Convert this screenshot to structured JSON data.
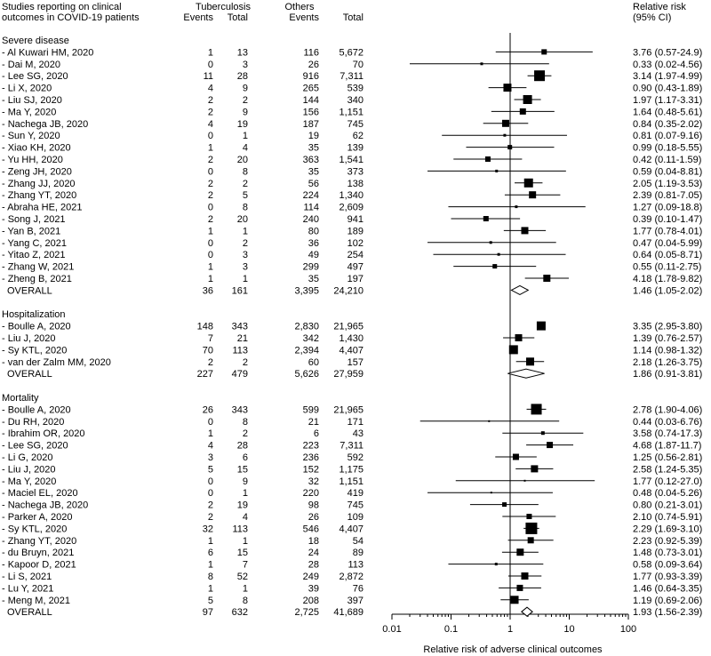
{
  "chart_data": {
    "type": "forest",
    "header": {
      "study_line1": "Studies reporting on clinical",
      "study_line2": "outcomes in COVID-19 patients",
      "group1": "Tuberculosis",
      "group2": "Others",
      "events": "Events",
      "total": "Total",
      "rr_line1": "Relative risk",
      "rr_line2": "(95% CI)"
    },
    "xaxis": {
      "scale": "log",
      "range": [
        0.01,
        100
      ],
      "ticks": [
        0.01,
        0.1,
        1,
        10,
        100
      ],
      "tick_labels": [
        "0.01",
        "0.1",
        "1",
        "10",
        "100"
      ],
      "label": "Relative risk of adverse clinical outcomes",
      "reference": 1
    },
    "rows": [
      {
        "kind": "header",
        "label": "Severe disease"
      },
      {
        "kind": "study",
        "label": "- Al Kuwari HM, 2020",
        "tb_events": "1",
        "tb_total": "13",
        "oth_events": "116",
        "oth_total": "5,672",
        "rr": 3.76,
        "lo": 0.57,
        "hi": 24.9,
        "ci_text": "3.76 (0.57-24.9)",
        "w": 6
      },
      {
        "kind": "study",
        "label": "- Dai M, 2020",
        "tb_events": "0",
        "tb_total": "3",
        "oth_events": "26",
        "oth_total": "70",
        "rr": 0.33,
        "lo": 0.02,
        "hi": 4.56,
        "ci_text": "0.33 (0.02-4.56)",
        "w": 3
      },
      {
        "kind": "study",
        "label": "- Lee SG, 2020",
        "tb_events": "11",
        "tb_total": "28",
        "oth_events": "916",
        "oth_total": "7,311",
        "rr": 3.14,
        "lo": 1.97,
        "hi": 4.99,
        "ci_text": "3.14 (1.97-4.99)",
        "w": 12
      },
      {
        "kind": "study",
        "label": "- Li X, 2020",
        "tb_events": "4",
        "tb_total": "9",
        "oth_events": "265",
        "oth_total": "539",
        "rr": 0.9,
        "lo": 0.43,
        "hi": 1.89,
        "ci_text": "0.90 (0.43-1.89)",
        "w": 9
      },
      {
        "kind": "study",
        "label": "- Liu SJ, 2020",
        "tb_events": "2",
        "tb_total": "2",
        "oth_events": "144",
        "oth_total": "340",
        "rr": 1.97,
        "lo": 1.17,
        "hi": 3.31,
        "ci_text": "1.97 (1.17-3.31)",
        "w": 10
      },
      {
        "kind": "study",
        "label": "- Ma Y, 2020",
        "tb_events": "2",
        "tb_total": "9",
        "oth_events": "156",
        "oth_total": "1,151",
        "rr": 1.64,
        "lo": 0.48,
        "hi": 5.61,
        "ci_text": "1.64 (0.48-5.61)",
        "w": 7
      },
      {
        "kind": "study",
        "label": "- Nachega JB, 2020",
        "tb_events": "4",
        "tb_total": "19",
        "oth_events": "187",
        "oth_total": "745",
        "rr": 0.84,
        "lo": 0.35,
        "hi": 2.02,
        "ci_text": "0.84 (0.35-2.02)",
        "w": 8
      },
      {
        "kind": "study",
        "label": "- Sun Y, 2020",
        "tb_events": "0",
        "tb_total": "1",
        "oth_events": "19",
        "oth_total": "62",
        "rr": 0.81,
        "lo": 0.07,
        "hi": 9.16,
        "ci_text": "0.81 (0.07-9.16)",
        "w": 3
      },
      {
        "kind": "study",
        "label": "- Xiao KH, 2020",
        "tb_events": "1",
        "tb_total": "4",
        "oth_events": "35",
        "oth_total": "139",
        "rr": 0.99,
        "lo": 0.18,
        "hi": 5.55,
        "ci_text": "0.99 (0.18-5.55)",
        "w": 5
      },
      {
        "kind": "study",
        "label": "- Yu HH, 2020",
        "tb_events": "2",
        "tb_total": "20",
        "oth_events": "363",
        "oth_total": "1,541",
        "rr": 0.42,
        "lo": 0.11,
        "hi": 1.59,
        "ci_text": "0.42 (0.11-1.59)",
        "w": 6
      },
      {
        "kind": "study",
        "label": "- Zeng JH, 2020",
        "tb_events": "0",
        "tb_total": "8",
        "oth_events": "35",
        "oth_total": "373",
        "rr": 0.59,
        "lo": 0.04,
        "hi": 8.81,
        "ci_text": "0.59 (0.04-8.81)",
        "w": 3
      },
      {
        "kind": "study",
        "label": "- Zhang JJ, 2020",
        "tb_events": "2",
        "tb_total": "2",
        "oth_events": "56",
        "oth_total": "138",
        "rr": 2.05,
        "lo": 1.19,
        "hi": 3.53,
        "ci_text": "2.05 (1.19-3.53)",
        "w": 10
      },
      {
        "kind": "study",
        "label": "- Zhang YT, 2020",
        "tb_events": "2",
        "tb_total": "5",
        "oth_events": "224",
        "oth_total": "1,340",
        "rr": 2.39,
        "lo": 0.81,
        "hi": 7.05,
        "ci_text": "2.39 (0.81-7.05)",
        "w": 8
      },
      {
        "kind": "study",
        "label": "- Abraha HE, 2021",
        "tb_events": "0",
        "tb_total": "8",
        "oth_events": "114",
        "oth_total": "2,609",
        "rr": 1.27,
        "lo": 0.09,
        "hi": 18.8,
        "ci_text": "1.27 (0.09-18.8)",
        "w": 3
      },
      {
        "kind": "study",
        "label": "- Song J, 2021",
        "tb_events": "2",
        "tb_total": "20",
        "oth_events": "240",
        "oth_total": "941",
        "rr": 0.39,
        "lo": 0.1,
        "hi": 1.47,
        "ci_text": "0.39 (0.10-1.47)",
        "w": 6
      },
      {
        "kind": "study",
        "label": "- Yan B, 2021",
        "tb_events": "1",
        "tb_total": "1",
        "oth_events": "80",
        "oth_total": "189",
        "rr": 1.77,
        "lo": 0.78,
        "hi": 4.01,
        "ci_text": "1.77 (0.78-4.01)",
        "w": 8
      },
      {
        "kind": "study",
        "label": "- Yang C, 2021",
        "tb_events": "0",
        "tb_total": "2",
        "oth_events": "36",
        "oth_total": "102",
        "rr": 0.47,
        "lo": 0.04,
        "hi": 5.99,
        "ci_text": "0.47 (0.04-5.99)",
        "w": 3
      },
      {
        "kind": "study",
        "label": "- Yitao Z, 2021",
        "tb_events": "0",
        "tb_total": "3",
        "oth_events": "49",
        "oth_total": "254",
        "rr": 0.64,
        "lo": 0.05,
        "hi": 8.71,
        "ci_text": "0.64 (0.05-8.71)",
        "w": 3
      },
      {
        "kind": "study",
        "label": "- Zhang W, 2021",
        "tb_events": "1",
        "tb_total": "3",
        "oth_events": "299",
        "oth_total": "497",
        "rr": 0.55,
        "lo": 0.11,
        "hi": 2.75,
        "ci_text": "0.55 (0.11-2.75)",
        "w": 5
      },
      {
        "kind": "study",
        "label": "- Zheng B, 2021",
        "tb_events": "1",
        "tb_total": "1",
        "oth_events": "35",
        "oth_total": "197",
        "rr": 4.18,
        "lo": 1.78,
        "hi": 9.82,
        "ci_text": "4.18 (1.78-9.82)",
        "w": 8
      },
      {
        "kind": "overall",
        "label": "OVERALL",
        "tb_events": "36",
        "tb_total": "161",
        "oth_events": "3,395",
        "oth_total": "24,210",
        "rr": 1.46,
        "lo": 1.05,
        "hi": 2.02,
        "ci_text": "1.46 (1.05-2.02)"
      },
      {
        "kind": "spacer"
      },
      {
        "kind": "header",
        "label": "Hospitalization"
      },
      {
        "kind": "study",
        "label": "- Boulle A, 2020",
        "tb_events": "148",
        "tb_total": "343",
        "oth_events": "2,830",
        "oth_total": "21,965",
        "rr": 3.35,
        "lo": 2.95,
        "hi": 3.8,
        "ci_text": "3.35 (2.95-3.80)",
        "w": 10
      },
      {
        "kind": "study",
        "label": "- Liu J, 2020",
        "tb_events": "7",
        "tb_total": "21",
        "oth_events": "342",
        "oth_total": "1,430",
        "rr": 1.39,
        "lo": 0.76,
        "hi": 2.57,
        "ci_text": "1.39 (0.76-2.57)",
        "w": 8
      },
      {
        "kind": "study",
        "label": "- Sy KTL, 2020",
        "tb_events": "70",
        "tb_total": "113",
        "oth_events": "2,394",
        "oth_total": "4,407",
        "rr": 1.14,
        "lo": 0.98,
        "hi": 1.32,
        "ci_text": "1.14 (0.98-1.32)",
        "w": 10
      },
      {
        "kind": "study",
        "label": "- van der Zalm MM, 2020",
        "tb_events": "2",
        "tb_total": "2",
        "oth_events": "60",
        "oth_total": "157",
        "rr": 2.18,
        "lo": 1.26,
        "hi": 3.75,
        "ci_text": "2.18 (1.26-3.75)",
        "w": 9
      },
      {
        "kind": "overall",
        "label": "OVERALL",
        "tb_events": "227",
        "tb_total": "479",
        "oth_events": "5,626",
        "oth_total": "27,959",
        "rr": 1.86,
        "lo": 0.91,
        "hi": 3.81,
        "ci_text": "1.86 (0.91-3.81)"
      },
      {
        "kind": "spacer"
      },
      {
        "kind": "header",
        "label": "Mortality"
      },
      {
        "kind": "study",
        "label": "- Boulle A, 2020",
        "tb_events": "26",
        "tb_total": "343",
        "oth_events": "599",
        "oth_total": "21,965",
        "rr": 2.78,
        "lo": 1.9,
        "hi": 4.06,
        "ci_text": "2.78 (1.90-4.06)",
        "w": 12
      },
      {
        "kind": "study",
        "label": "- Du RH, 2020",
        "tb_events": "0",
        "tb_total": "8",
        "oth_events": "21",
        "oth_total": "171",
        "rr": 0.44,
        "lo": 0.03,
        "hi": 6.76,
        "ci_text": "0.44 (0.03-6.76)",
        "w": 2
      },
      {
        "kind": "study",
        "label": "- Ibrahim OR, 2020",
        "tb_events": "1",
        "tb_total": "2",
        "oth_events": "6",
        "oth_total": "43",
        "rr": 3.58,
        "lo": 0.74,
        "hi": 17.3,
        "ci_text": "3.58 (0.74-17.3)",
        "w": 4
      },
      {
        "kind": "study",
        "label": "- Lee SG, 2020",
        "tb_events": "4",
        "tb_total": "28",
        "oth_events": "223",
        "oth_total": "7,311",
        "rr": 4.68,
        "lo": 1.87,
        "hi": 11.7,
        "ci_text": "4.68 (1.87-11.7)",
        "w": 7
      },
      {
        "kind": "study",
        "label": "- Li G, 2020",
        "tb_events": "3",
        "tb_total": "6",
        "oth_events": "236",
        "oth_total": "592",
        "rr": 1.25,
        "lo": 0.56,
        "hi": 2.81,
        "ci_text": "1.25 (0.56-2.81)",
        "w": 7
      },
      {
        "kind": "study",
        "label": "- Liu J, 2020",
        "tb_events": "5",
        "tb_total": "15",
        "oth_events": "152",
        "oth_total": "1,175",
        "rr": 2.58,
        "lo": 1.24,
        "hi": 5.35,
        "ci_text": "2.58 (1.24-5.35)",
        "w": 8
      },
      {
        "kind": "study",
        "label": "- Ma Y, 2020",
        "tb_events": "0",
        "tb_total": "9",
        "oth_events": "32",
        "oth_total": "1,151",
        "rr": 1.77,
        "lo": 0.12,
        "hi": 27.0,
        "ci_text": "1.77 (0.12-27.0)",
        "w": 2
      },
      {
        "kind": "study",
        "label": "- Maciel EL, 2020",
        "tb_events": "0",
        "tb_total": "1",
        "oth_events": "220",
        "oth_total": "419",
        "rr": 0.48,
        "lo": 0.04,
        "hi": 5.26,
        "ci_text": "0.48 (0.04-5.26)",
        "w": 2
      },
      {
        "kind": "study",
        "label": "- Nachega JB, 2020",
        "tb_events": "2",
        "tb_total": "19",
        "oth_events": "98",
        "oth_total": "745",
        "rr": 0.8,
        "lo": 0.21,
        "hi": 3.01,
        "ci_text": "0.80 (0.21-3.01)",
        "w": 5
      },
      {
        "kind": "study",
        "label": "- Parker A, 2020",
        "tb_events": "2",
        "tb_total": "4",
        "oth_events": "26",
        "oth_total": "109",
        "rr": 2.1,
        "lo": 0.74,
        "hi": 5.91,
        "ci_text": "2.10 (0.74-5.91)",
        "w": 6
      },
      {
        "kind": "study",
        "label": "- Sy KTL, 2020",
        "tb_events": "32",
        "tb_total": "113",
        "oth_events": "546",
        "oth_total": "4,407",
        "rr": 2.29,
        "lo": 1.69,
        "hi": 3.1,
        "ci_text": "2.29 (1.69-3.10)",
        "w": 13
      },
      {
        "kind": "study",
        "label": "- Zhang YT, 2020",
        "tb_events": "1",
        "tb_total": "1",
        "oth_events": "18",
        "oth_total": "54",
        "rr": 2.23,
        "lo": 0.92,
        "hi": 5.39,
        "ci_text": "2.23 (0.92-5.39)",
        "w": 7
      },
      {
        "kind": "study",
        "label": "- du Bruyn, 2021",
        "tb_events": "6",
        "tb_total": "15",
        "oth_events": "24",
        "oth_total": "89",
        "rr": 1.48,
        "lo": 0.73,
        "hi": 3.01,
        "ci_text": "1.48 (0.73-3.01)",
        "w": 8
      },
      {
        "kind": "study",
        "label": "- Kapoor D, 2021",
        "tb_events": "1",
        "tb_total": "7",
        "oth_events": "28",
        "oth_total": "113",
        "rr": 0.58,
        "lo": 0.09,
        "hi": 3.64,
        "ci_text": "0.58 (0.09-3.64)",
        "w": 3
      },
      {
        "kind": "study",
        "label": "- Li S, 2021",
        "tb_events": "8",
        "tb_total": "52",
        "oth_events": "249",
        "oth_total": "2,872",
        "rr": 1.77,
        "lo": 0.93,
        "hi": 3.39,
        "ci_text": "1.77 (0.93-3.39)",
        "w": 8
      },
      {
        "kind": "study",
        "label": "- Lu Y, 2021",
        "tb_events": "1",
        "tb_total": "1",
        "oth_events": "39",
        "oth_total": "76",
        "rr": 1.46,
        "lo": 0.64,
        "hi": 3.35,
        "ci_text": "1.46 (0.64-3.35)",
        "w": 7
      },
      {
        "kind": "study",
        "label": "- Meng M, 2021",
        "tb_events": "5",
        "tb_total": "8",
        "oth_events": "208",
        "oth_total": "397",
        "rr": 1.19,
        "lo": 0.69,
        "hi": 2.06,
        "ci_text": "1.19 (0.69-2.06)",
        "w": 9
      },
      {
        "kind": "overall",
        "label": "OVERALL",
        "tb_events": "97",
        "tb_total": "632",
        "oth_events": "2,725",
        "oth_total": "41,689",
        "rr": 1.93,
        "lo": 1.56,
        "hi": 2.39,
        "ci_text": "1.93 (1.56-2.39)"
      }
    ]
  }
}
